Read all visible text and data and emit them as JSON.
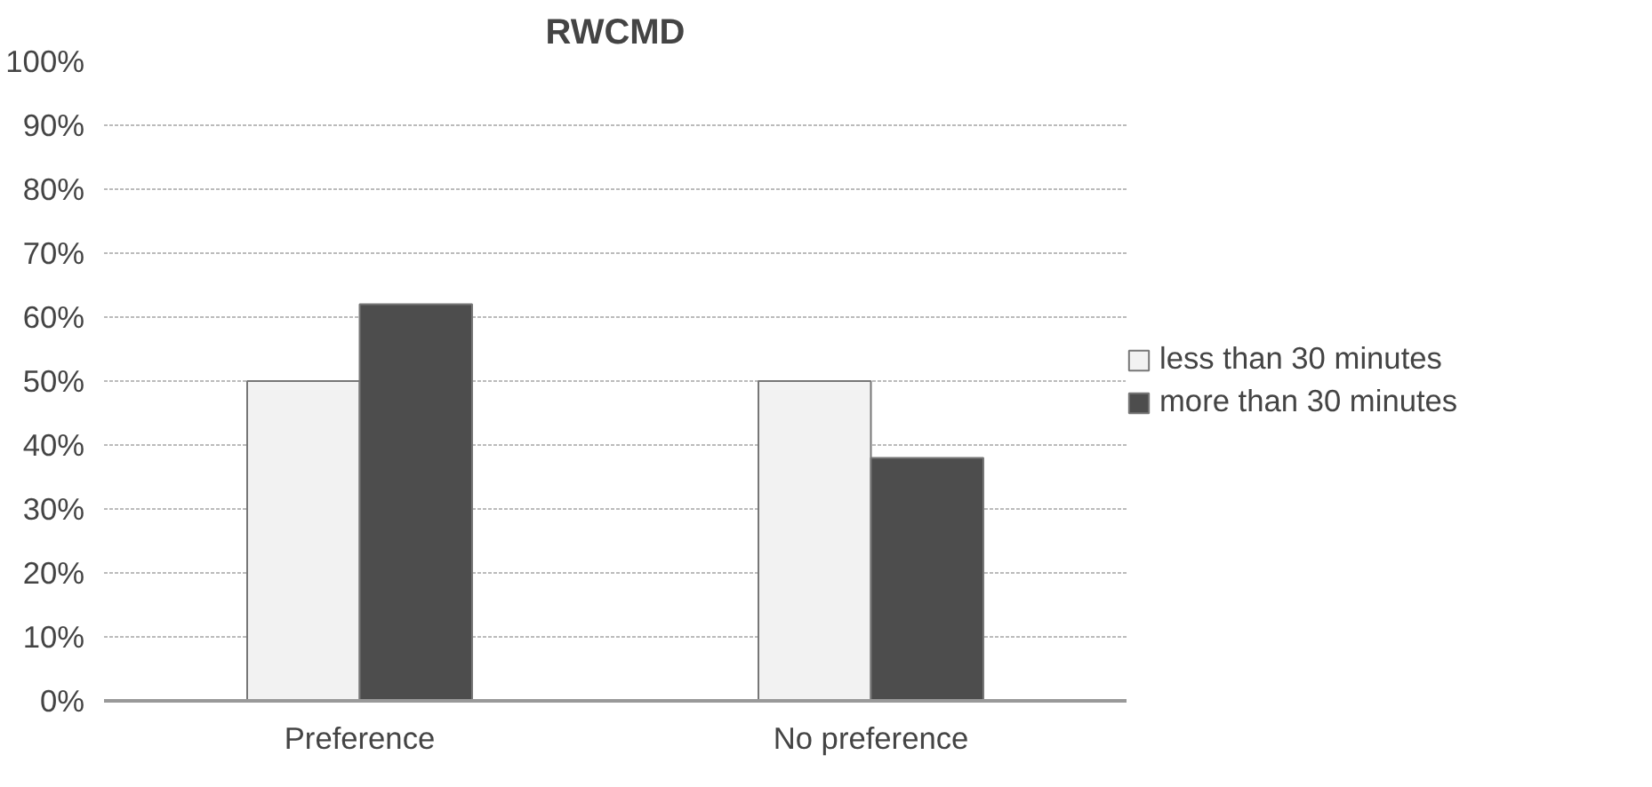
{
  "chart_data": {
    "type": "bar",
    "title": "RWCMD",
    "categories": [
      "Preference",
      "No preference"
    ],
    "series": [
      {
        "name": "less than 30 minutes",
        "color": "#f2f2f2",
        "values": [
          50,
          50
        ]
      },
      {
        "name": "more than 30 minutes",
        "color": "#4d4d4d",
        "values": [
          62,
          38
        ]
      }
    ],
    "ylim": [
      0,
      100
    ],
    "yticks": [
      {
        "value": 0,
        "label": "0%"
      },
      {
        "value": 10,
        "label": "10%"
      },
      {
        "value": 20,
        "label": "20%"
      },
      {
        "value": 30,
        "label": "30%"
      },
      {
        "value": 40,
        "label": "40%"
      },
      {
        "value": 50,
        "label": "50%"
      },
      {
        "value": 60,
        "label": "60%"
      },
      {
        "value": 70,
        "label": "70%"
      },
      {
        "value": 80,
        "label": "80%"
      },
      {
        "value": 90,
        "label": "90%"
      },
      {
        "value": 100,
        "label": "100%"
      }
    ],
    "grid": "y",
    "legend": "right"
  }
}
